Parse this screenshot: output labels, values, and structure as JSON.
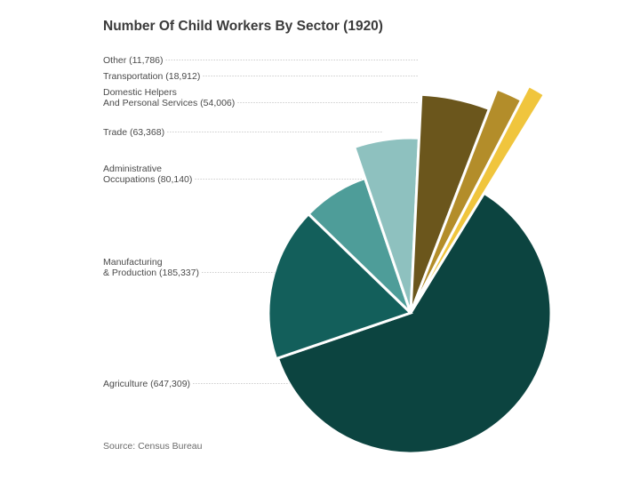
{
  "chart_data": {
    "type": "pie",
    "title": "Number Of Child Workers By Sector (1920)",
    "source": "Source: Census Bureau",
    "slices": [
      {
        "name": "Agriculture",
        "value": 647309,
        "label_lines": [
          "Agriculture (647,309)"
        ],
        "color": "#0c4440"
      },
      {
        "name": "Manufacturing & Production",
        "value": 185337,
        "label_lines": [
          "Manufacturing",
          "& Production (185,337)"
        ],
        "color": "#135f5b"
      },
      {
        "name": "Administrative Occupations",
        "value": 80140,
        "label_lines": [
          "Administrative",
          "Occupations (80,140)"
        ],
        "color": "#4e9d99"
      },
      {
        "name": "Trade",
        "value": 63368,
        "label_lines": [
          "Trade (63,368)"
        ],
        "color": "#8ec1bf"
      },
      {
        "name": "Domestic Helpers And Personal Services",
        "value": 54006,
        "label_lines": [
          "Domestic Helpers",
          "And Personal Services (54,006)"
        ],
        "color": "#6b561c"
      },
      {
        "name": "Transportation",
        "value": 18912,
        "label_lines": [
          "Transportation (18,912)"
        ],
        "color": "#b38d2a"
      },
      {
        "name": "Other",
        "value": 11786,
        "label_lines": [
          "Other (11,786)"
        ],
        "color": "#f0c53d"
      }
    ]
  }
}
